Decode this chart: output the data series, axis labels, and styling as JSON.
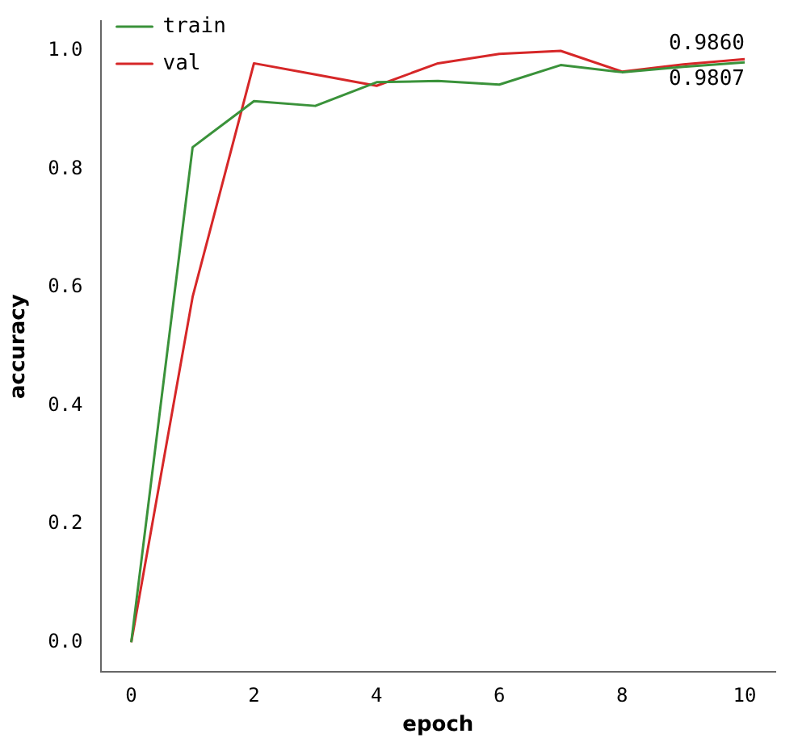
{
  "chart_data": {
    "type": "line",
    "xlabel": "epoch",
    "ylabel": "accuracy",
    "x": [
      0,
      1,
      2,
      3,
      4,
      5,
      6,
      7,
      8,
      9,
      10
    ],
    "series": [
      {
        "name": "train",
        "color": "#3a923a",
        "values": [
          0.0,
          0.837,
          0.915,
          0.907,
          0.947,
          0.949,
          0.943,
          0.976,
          0.964,
          0.973,
          0.9807
        ]
      },
      {
        "name": "val",
        "color": "#d62728",
        "values": [
          0.0,
          0.584,
          0.979,
          0.96,
          0.941,
          0.979,
          0.995,
          1.0,
          0.965,
          0.977,
          0.986
        ]
      }
    ],
    "xlim": [
      -0.5,
      10.5
    ],
    "xticks": [
      0,
      2,
      4,
      6,
      8,
      10
    ],
    "ylim": [
      -0.05,
      1.05
    ],
    "yticks": [
      {
        "value": 0,
        "label": "0.0"
      },
      {
        "value": 0.2,
        "label": "0.2"
      },
      {
        "value": 0.4,
        "label": "0.4"
      },
      {
        "value": 0.6,
        "label": "0.6"
      },
      {
        "value": 0.8,
        "label": "0.8"
      },
      {
        "value": 1,
        "label": "1.0"
      }
    ],
    "annotations": [
      {
        "text": "0.9860",
        "x": 10,
        "y": 0.986
      },
      {
        "text": "0.9807",
        "x": 10,
        "y": 0.9807
      }
    ],
    "legend": "top left",
    "grid": false,
    "marker": "none",
    "line_style": "solid"
  }
}
